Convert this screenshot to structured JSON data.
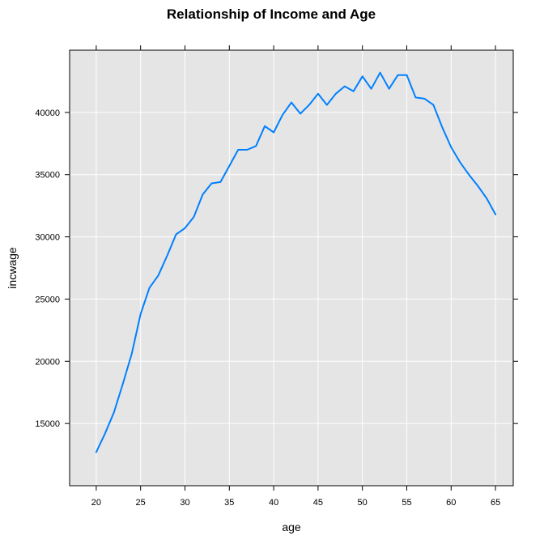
{
  "chart_data": {
    "type": "line",
    "title": "Relationship of Income and Age",
    "xlabel": "age",
    "ylabel": "incwage",
    "xlim": [
      17,
      67
    ],
    "ylim": [
      10000,
      45000
    ],
    "grid": true,
    "background_color": "#e5e5e5",
    "grid_color": "#ffffff",
    "line_color": "#0080ff",
    "x_ticks": [
      20,
      25,
      30,
      35,
      40,
      45,
      50,
      55,
      60,
      65
    ],
    "y_ticks": [
      15000,
      20000,
      25000,
      30000,
      35000,
      40000
    ],
    "x": [
      20,
      21,
      22,
      23,
      24,
      25,
      26,
      27,
      28,
      29,
      30,
      31,
      32,
      33,
      34,
      35,
      36,
      37,
      38,
      39,
      40,
      41,
      42,
      43,
      44,
      45,
      46,
      47,
      48,
      49,
      50,
      51,
      52,
      53,
      54,
      55,
      56,
      57,
      58,
      59,
      60,
      61,
      62,
      63,
      64,
      65
    ],
    "y": [
      12700,
      14200,
      15900,
      18200,
      20600,
      23800,
      25900,
      26900,
      28500,
      30200,
      30700,
      31600,
      33400,
      34300,
      34400,
      35700,
      37000,
      37000,
      37300,
      38900,
      38400,
      39800,
      40800,
      39900,
      40600,
      41500,
      40600,
      41500,
      42100,
      41700,
      42900,
      41900,
      43200,
      41900,
      43000,
      43000,
      41200,
      41100,
      40600,
      38800,
      37200,
      36000,
      35000,
      34100,
      33100,
      31800
    ]
  }
}
